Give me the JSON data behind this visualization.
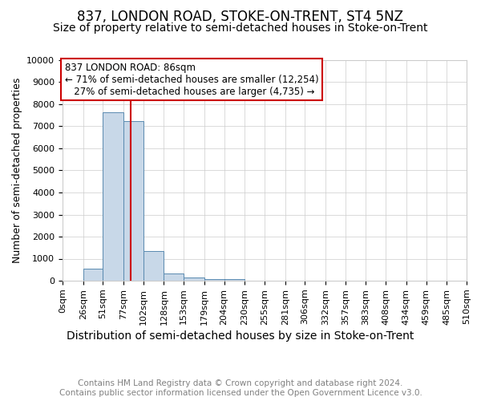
{
  "title": "837, LONDON ROAD, STOKE-ON-TRENT, ST4 5NZ",
  "subtitle": "Size of property relative to semi-detached houses in Stoke-on-Trent",
  "xlabel": "Distribution of semi-detached houses by size in Stoke-on-Trent",
  "ylabel": "Number of semi-detached properties",
  "footer": "Contains HM Land Registry data © Crown copyright and database right 2024.\nContains public sector information licensed under the Open Government Licence v3.0.",
  "bin_edges": [
    0,
    26,
    51,
    77,
    102,
    128,
    153,
    179,
    204,
    230,
    255,
    281,
    306,
    332,
    357,
    383,
    408,
    434,
    459,
    485,
    510
  ],
  "bar_values": [
    0,
    560,
    7650,
    7250,
    1350,
    310,
    150,
    90,
    70,
    0,
    0,
    0,
    0,
    0,
    0,
    0,
    0,
    0,
    0,
    0
  ],
  "bar_color": "#c8d8e8",
  "bar_edgecolor": "#5a8ab0",
  "property_size": 86,
  "property_label": "837 LONDON ROAD: 86sqm",
  "pct_smaller": 71,
  "n_smaller": 12254,
  "pct_larger": 27,
  "n_larger": 4735,
  "vline_color": "#cc0000",
  "annotation_box_edgecolor": "#cc0000",
  "ylim": [
    0,
    10000
  ],
  "yticks": [
    0,
    1000,
    2000,
    3000,
    4000,
    5000,
    6000,
    7000,
    8000,
    9000,
    10000
  ],
  "title_fontsize": 12,
  "subtitle_fontsize": 10,
  "xlabel_fontsize": 10,
  "ylabel_fontsize": 9,
  "tick_fontsize": 8,
  "annotation_fontsize": 8.5,
  "footer_fontsize": 7.5,
  "background_color": "#ffffff",
  "grid_color": "#cccccc"
}
